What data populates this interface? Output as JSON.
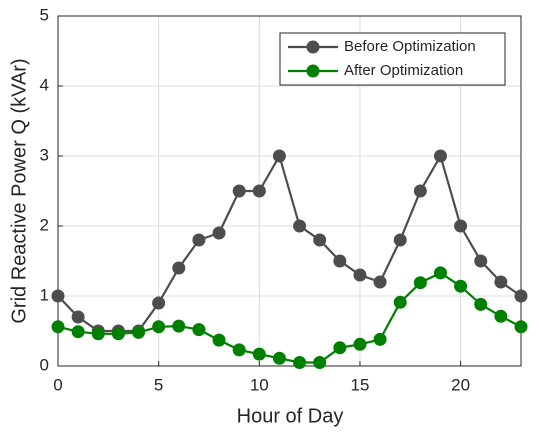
{
  "chart_data": {
    "type": "line",
    "xlabel": "Hour of Day",
    "ylabel": "Grid Reactive Power Q (kVAr)",
    "x": [
      0,
      1,
      2,
      3,
      4,
      5,
      6,
      7,
      8,
      9,
      10,
      11,
      12,
      13,
      14,
      15,
      16,
      17,
      18,
      19,
      20,
      21,
      22,
      23
    ],
    "series": [
      {
        "name": "Before Optimization",
        "color": "#4d4d4d",
        "values": [
          1.0,
          0.7,
          0.5,
          0.5,
          0.5,
          0.9,
          1.4,
          1.8,
          1.9,
          2.5,
          2.5,
          3.0,
          2.0,
          1.8,
          1.5,
          1.3,
          1.2,
          1.8,
          2.5,
          3.0,
          2.0,
          1.5,
          1.2,
          1.0
        ]
      },
      {
        "name": "After Optimization",
        "color": "#008000",
        "values": [
          0.56,
          0.49,
          0.46,
          0.46,
          0.48,
          0.56,
          0.57,
          0.52,
          0.37,
          0.23,
          0.17,
          0.11,
          0.05,
          0.05,
          0.26,
          0.31,
          0.38,
          0.91,
          1.19,
          1.33,
          1.14,
          0.88,
          0.71,
          0.56
        ]
      }
    ],
    "xlim": [
      0,
      23
    ],
    "xticks": [
      0,
      5,
      10,
      15,
      20
    ],
    "ylim": [
      0,
      5
    ],
    "yticks": [
      0,
      1,
      2,
      3,
      4,
      5
    ],
    "grid": true,
    "legend": "upper right"
  }
}
